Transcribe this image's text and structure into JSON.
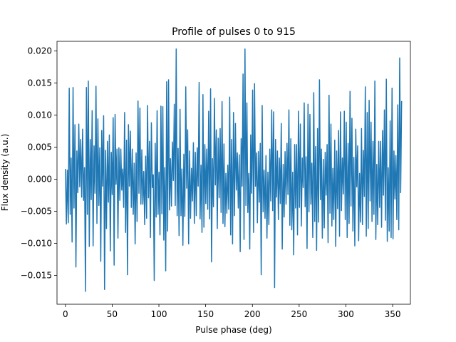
{
  "chart_data": {
    "type": "line",
    "title": "Profile of pulses 0 to 915",
    "xlabel": "Pulse phase (deg)",
    "ylabel": "Flux density (a.u.)",
    "xlim": [
      -9,
      369
    ],
    "ylim": [
      -0.0195,
      0.0215
    ],
    "xticks": [
      0,
      50,
      100,
      150,
      200,
      250,
      300,
      350
    ],
    "xtick_labels": [
      "0",
      "50",
      "100",
      "150",
      "200",
      "250",
      "300",
      "350"
    ],
    "yticks": [
      -0.015,
      -0.01,
      -0.005,
      0.0,
      0.005,
      0.01,
      0.015,
      0.02
    ],
    "ytick_labels": [
      "−0.015",
      "−0.010",
      "−0.005",
      "0.000",
      "0.005",
      "0.010",
      "0.015",
      "0.020"
    ],
    "grid": false,
    "legend": "none",
    "series": [
      {
        "color": "#1f77b4",
        "x_start": 0,
        "x_end": 359.6,
        "values": [
          0.0016,
          -0.007,
          0.0014,
          -0.0068,
          0.0142,
          -0.0055,
          0.0033,
          -0.0098,
          0.0143,
          -0.0045,
          0.0085,
          -0.0137,
          0.0044,
          -0.0021,
          0.0086,
          -0.0012,
          0.0062,
          -0.0028,
          0.0078,
          -0.0033,
          0.0018,
          -0.0175,
          0.0143,
          -0.0055,
          0.0153,
          -0.0105,
          0.0062,
          -0.0032,
          0.0107,
          -0.0104,
          0.0052,
          -0.0022,
          0.0145,
          -0.0069,
          0.0094,
          -0.0041,
          0.0049,
          -0.0128,
          0.0076,
          -0.0011,
          0.0099,
          -0.0172,
          0.0045,
          -0.0077,
          0.0059,
          -0.0036,
          0.0069,
          -0.0112,
          0.0042,
          -0.0024,
          0.0096,
          -0.0134,
          0.0101,
          -0.0008,
          0.0047,
          -0.0092,
          0.0049,
          -0.0033,
          0.0047,
          -0.0017,
          0.0016,
          -0.0044,
          0.0104,
          -0.0083,
          0.0061,
          -0.0149,
          0.0085,
          -0.0011,
          0.0075,
          -0.0044,
          0.0047,
          -0.0055,
          0.0025,
          -0.0101,
          0.0041,
          -0.0066,
          0.0122,
          -0.0022,
          0.0111,
          -0.0039,
          0.0046,
          -0.0039,
          0.0012,
          -0.0071,
          0.0036,
          -0.0061,
          0.0115,
          -0.0029,
          0.0059,
          -0.0091,
          0.0088,
          -0.0013,
          0.0007,
          -0.0158,
          0.0056,
          -0.0059,
          0.0107,
          -0.0055,
          0.0011,
          -0.0087,
          0.0114,
          -0.0054,
          0.0113,
          -0.0095,
          0.0018,
          -0.0143,
          0.0152,
          -0.0081,
          0.0155,
          -0.0048,
          0.0032,
          -0.0042,
          0.0058,
          -0.0002,
          0.0117,
          -0.0041,
          0.0203,
          -0.0057,
          0.0048,
          -0.0088,
          0.0109,
          -0.0057,
          0.0016,
          -0.0103,
          0.0039,
          -0.0058,
          0.0144,
          -0.0014,
          0.0077,
          -0.0101,
          0.0044,
          -0.0061,
          0.0017,
          -0.0034,
          0.0057,
          -0.0069,
          0.0042,
          -0.0057,
          0.0049,
          -0.0011,
          0.0151,
          -0.0062,
          0.0022,
          -0.0083,
          0.0132,
          -0.0075,
          0.0054,
          -0.0038,
          0.0047,
          -0.0047,
          0.0106,
          -0.0062,
          0.0141,
          -0.0129,
          0.0032,
          -0.0043,
          0.0126,
          -0.0009,
          0.0077,
          -0.0077,
          0.0064,
          -0.0029,
          0.0079,
          -0.0052,
          0.0121,
          -0.0069,
          0.0055,
          -0.0074,
          0.0009,
          -0.0053,
          0.0022,
          -0.0047,
          0.0128,
          -0.0087,
          0.0062,
          -0.0101,
          0.0104,
          -0.0057,
          0.0087,
          -0.0017,
          0.0041,
          -0.0045,
          0.0038,
          -0.0113,
          0.0063,
          -0.0011,
          0.0164,
          -0.0094,
          0.0203,
          -0.0041,
          0.0119,
          -0.0052,
          0.0009,
          -0.0109,
          0.0069,
          -0.0022,
          0.0139,
          -0.0083,
          0.0149,
          -0.0011,
          0.0041,
          -0.0068,
          0.0043,
          -0.0036,
          0.0056,
          -0.0149,
          0.0115,
          -0.0051,
          0.0014,
          -0.0061,
          0.0037,
          -0.0092,
          0.0011,
          -0.0071,
          0.0047,
          -0.0034,
          0.0108,
          -0.0049,
          0.0105,
          -0.0169,
          0.0062,
          -0.0028,
          0.0044,
          -0.0063,
          0.0033,
          -0.0038,
          0.0087,
          -0.0109,
          0.0023,
          -0.0059,
          0.0043,
          -0.0039,
          0.0056,
          -0.0024,
          0.0108,
          -0.0072,
          0.0063,
          -0.0079,
          0.0011,
          -0.0118,
          0.0054,
          -0.0045,
          0.0054,
          -0.0087,
          0.0106,
          -0.0044,
          0.0086,
          -0.0073,
          0.0033,
          -0.0013,
          0.0119,
          -0.0043,
          0.0035,
          -0.0108,
          0.0117,
          -0.0051,
          0.0101,
          -0.0039,
          0.0025,
          -0.0091,
          0.0135,
          -0.0066,
          0.0051,
          -0.0111,
          0.0079,
          -0.0067,
          0.0155,
          -0.0032,
          0.0047,
          -0.0092,
          0.0031,
          -0.0076,
          0.0042,
          -0.0025,
          0.0054,
          -0.0099,
          0.0131,
          -0.0053,
          0.0086,
          -0.0073,
          0.0017,
          -0.0063,
          0.0061,
          -0.0105,
          0.0044,
          -0.0046,
          0.0076,
          -0.0089,
          0.0105,
          -0.0049,
          0.0033,
          -0.0023,
          0.0106,
          -0.0063,
          0.0089,
          -0.0091,
          0.0056,
          -0.0069,
          0.0137,
          -0.0042,
          0.0095,
          -0.0081,
          0.0034,
          -0.0104,
          0.0078,
          -0.0012,
          0.0052,
          -0.0096,
          0.0009,
          -0.0067,
          0.0079,
          -0.0071,
          0.0045,
          -0.0027,
          0.0144,
          -0.0089,
          0.0104,
          -0.0077,
          0.0123,
          -0.0034,
          0.0089,
          -0.0066,
          0.0059,
          -0.0055,
          0.0153,
          -0.0094,
          0.0023,
          -0.0071,
          0.0059,
          -0.0044,
          0.0059,
          -0.0075,
          0.0076,
          -0.0025,
          0.0108,
          -0.0064,
          0.0156,
          -0.0097,
          0.0018,
          -0.0081,
          0.0091,
          -0.0091,
          0.0142,
          -0.0093,
          0.0044,
          -0.0031,
          0.0037,
          -0.0063,
          0.0116,
          -0.0079,
          0.0189,
          -0.0021,
          0.0122
        ]
      }
    ]
  }
}
